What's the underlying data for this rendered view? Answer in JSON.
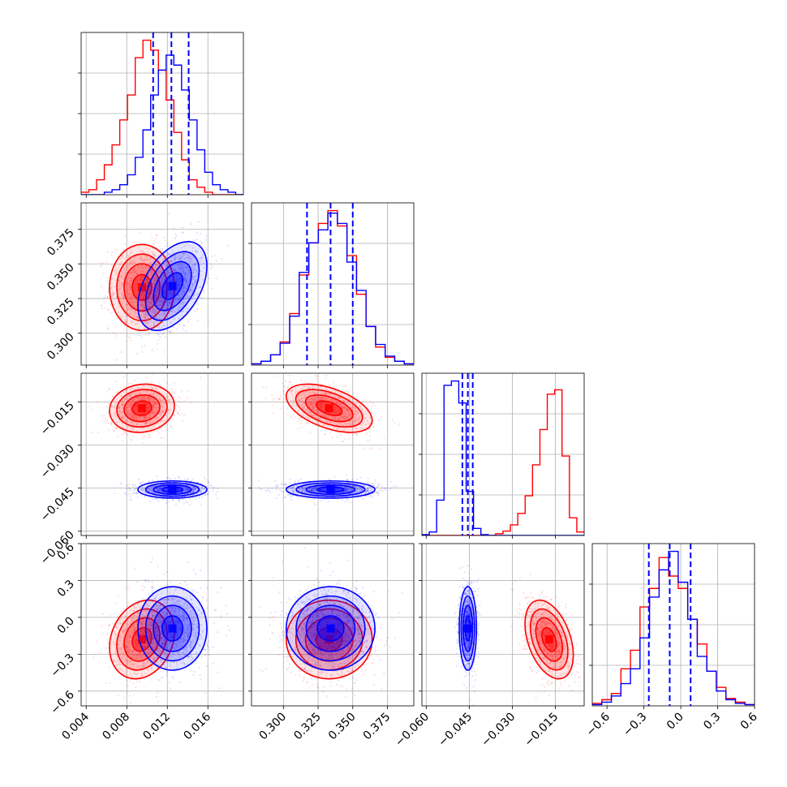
{
  "chart_data": {
    "type": "corner",
    "grid": true,
    "colors": {
      "series_a": "#ff0000",
      "series_b": "#0000ff",
      "grid": "#b0b0b0"
    },
    "parameters": [
      {
        "range": [
          0.0035,
          0.0195
        ],
        "ticks": [
          0.004,
          0.008,
          0.012,
          0.016
        ],
        "tick_labels": [
          "0.004",
          "0.008",
          "0.012",
          "0.016"
        ]
      },
      {
        "range": [
          0.277,
          0.394
        ],
        "ticks": [
          0.3,
          0.325,
          0.35,
          0.375
        ],
        "tick_labels": [
          "0.300",
          "0.325",
          "0.350",
          "0.375"
        ]
      },
      {
        "range": [
          -0.0615,
          -0.005
        ],
        "ticks": [
          -0.06,
          -0.045,
          -0.03,
          -0.015
        ],
        "tick_labels": [
          "−0.060",
          "−0.045",
          "−0.030",
          "−0.015"
        ]
      },
      {
        "range": [
          -0.72,
          0.6
        ],
        "ticks": [
          -0.6,
          -0.3,
          0.0,
          0.3,
          0.6
        ],
        "tick_labels": [
          "−0.6",
          "−0.3",
          "0.0",
          "0.3",
          "0.6"
        ]
      }
    ],
    "quantiles_series_b": [
      [
        0.0106,
        0.0124,
        0.0141
      ],
      [
        0.317,
        0.334,
        0.35
      ],
      [
        -0.0474,
        -0.0455,
        -0.0438
      ],
      [
        -0.26,
        -0.09,
        0.08
      ]
    ],
    "series": [
      {
        "color": "#ff0000",
        "mean": [
          0.0095,
          0.333,
          -0.0172,
          -0.18
        ],
        "std": [
          0.0016,
          0.0155,
          0.0042,
          0.16
        ],
        "corr": {
          "0-1": 0.0,
          "0-2": 0.1,
          "0-3": 0.2,
          "1-2": -0.5,
          "1-3": 0.0,
          "2-3": -0.4
        },
        "histograms": [
          {
            "values": [
              1,
              2,
              6,
              12,
              20,
              30,
              40,
              55,
              62,
              58,
              50,
              38,
              25,
              14,
              6,
              3,
              1,
              0,
              0,
              0,
              0
            ]
          },
          {
            "values": [
              1,
              3,
              8,
              18,
              40,
              70,
              95,
              110,
              120,
              108,
              85,
              55,
              30,
              14,
              6,
              3,
              1
            ]
          },
          {
            "values": [
              0,
              0,
              0,
              0,
              0,
              0,
              0,
              0,
              0,
              0,
              2,
              5,
              12,
              25,
              45,
              80,
              120,
              160,
              165,
              90,
              20,
              4
            ]
          },
          {
            "values": [
              2,
              5,
              10,
              30,
              45,
              80,
              95,
              120,
              105,
              95,
              70,
              50,
              28,
              15,
              6,
              3,
              1
            ]
          }
        ]
      },
      {
        "color": "#0000ff",
        "mean": [
          0.0125,
          0.334,
          -0.0455,
          -0.09
        ],
        "std": [
          0.0017,
          0.016,
          0.0015,
          0.17
        ],
        "corr": {
          "0-1": 0.45,
          "0-2": 0.0,
          "0-3": 0.0,
          "1-2": 0.0,
          "1-3": 0.0,
          "2-3": 0.0
        },
        "histograms": [
          {
            "values": [
              0,
              0,
              0,
              1,
              2,
              4,
              8,
              15,
              26,
              40,
              50,
              56,
              52,
              42,
              30,
              18,
              9,
              4,
              2,
              1,
              0
            ]
          },
          {
            "values": [
              1,
              3,
              8,
              17,
              38,
              72,
              95,
              105,
              118,
              110,
              80,
              58,
              30,
              16,
              7,
              3,
              1
            ]
          },
          {
            "values": [
              1,
              4,
              40,
              170,
              175,
              150,
              50,
              8,
              1,
              0,
              0,
              0,
              0,
              0,
              0,
              0,
              0,
              0,
              0,
              0,
              0,
              0
            ]
          },
          {
            "values": [
              1,
              3,
              8,
              18,
              30,
              55,
              88,
              110,
              125,
              100,
              70,
              40,
              28,
              12,
              5,
              2,
              1
            ]
          }
        ]
      }
    ]
  }
}
